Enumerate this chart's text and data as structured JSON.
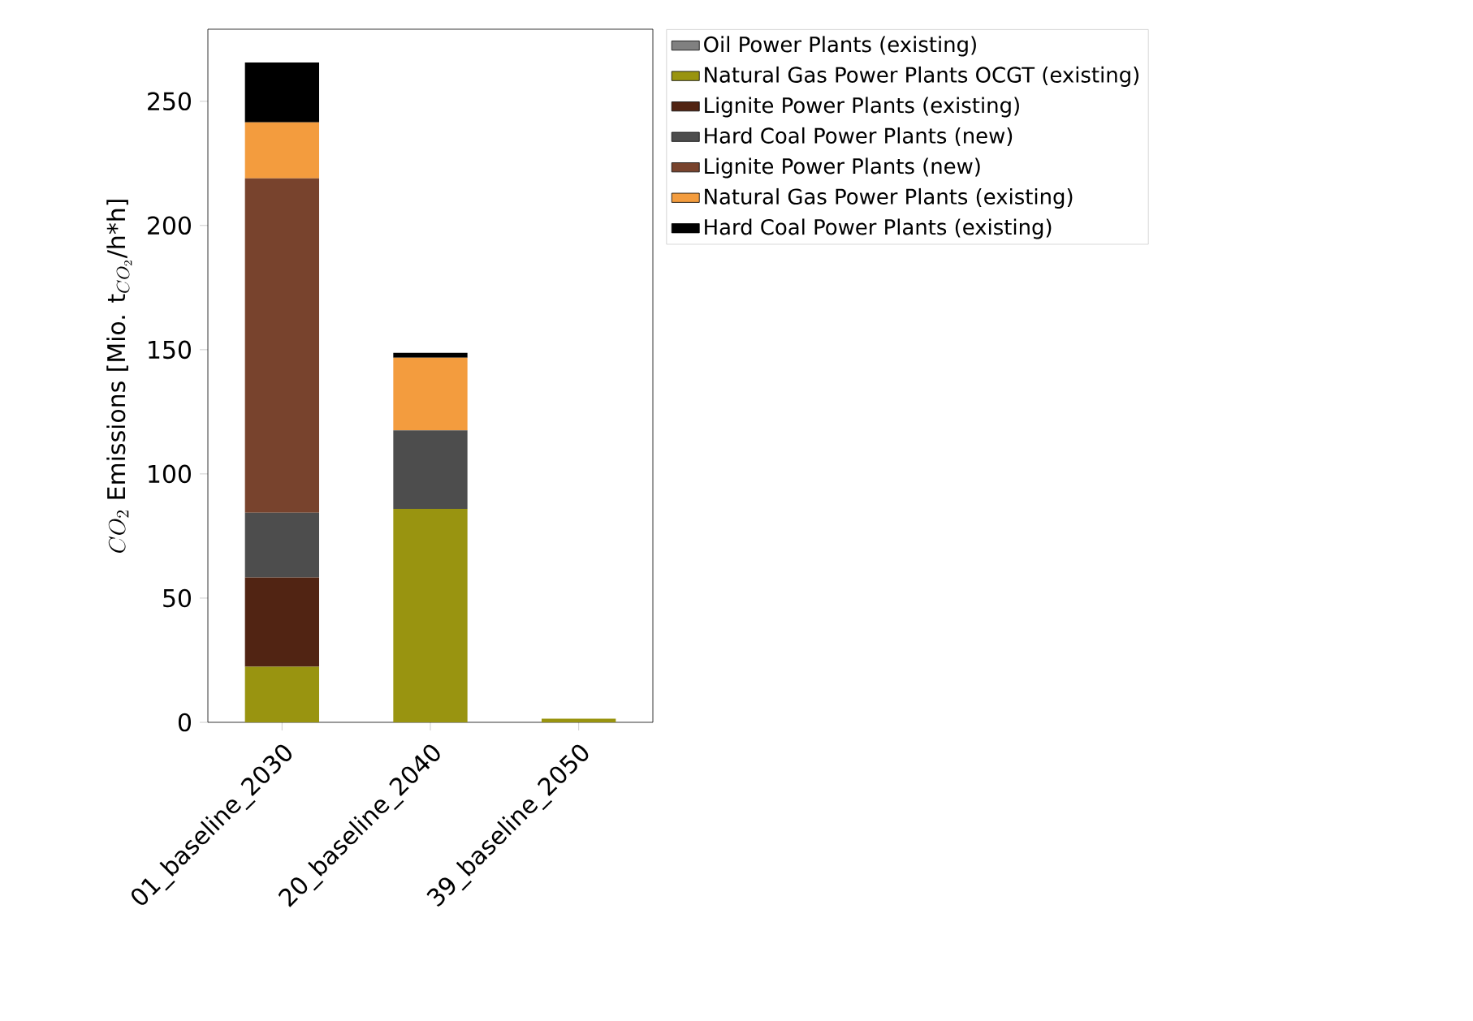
{
  "chart_data": {
    "type": "bar",
    "stacked": true,
    "ylabel": "CO_2\\text{ Emissions [Mio. t}_{CO_2}\\text{/h*h]}",
    "categories": [
      "01_baseline_2030",
      "20_baseline_2040",
      "39_baseline_2050"
    ],
    "series": [
      {
        "name": "Oil Power Plants (existing)",
        "color": "#808080",
        "values": [
          0,
          0,
          0
        ]
      },
      {
        "name": "Natural Gas Power Plants OCGT (existing)",
        "color": "#999410",
        "values": [
          22.4,
          85.9,
          1.5
        ]
      },
      {
        "name": "Lignite Power Plants (existing)",
        "color": "#512413",
        "values": [
          35.9,
          0,
          0
        ]
      },
      {
        "name": "Hard Coal Power Plants (new)",
        "color": "#4d4d4d",
        "values": [
          26.1,
          31.6,
          0
        ]
      },
      {
        "name": "Lignite Power Plants (new)",
        "color": "#78432d",
        "values": [
          134.6,
          0,
          0
        ]
      },
      {
        "name": "Natural Gas Power Plants (existing)",
        "color": "#f39c3e",
        "values": [
          22.5,
          29.3,
          0
        ]
      },
      {
        "name": "Hard Coal Power Plants (existing)",
        "color": "#000000",
        "values": [
          24.1,
          1.9,
          0
        ]
      }
    ],
    "ylim": [
      0,
      279
    ],
    "yticks": [
      0,
      50,
      100,
      150,
      200,
      250
    ],
    "grid": false,
    "legend": "top right"
  }
}
